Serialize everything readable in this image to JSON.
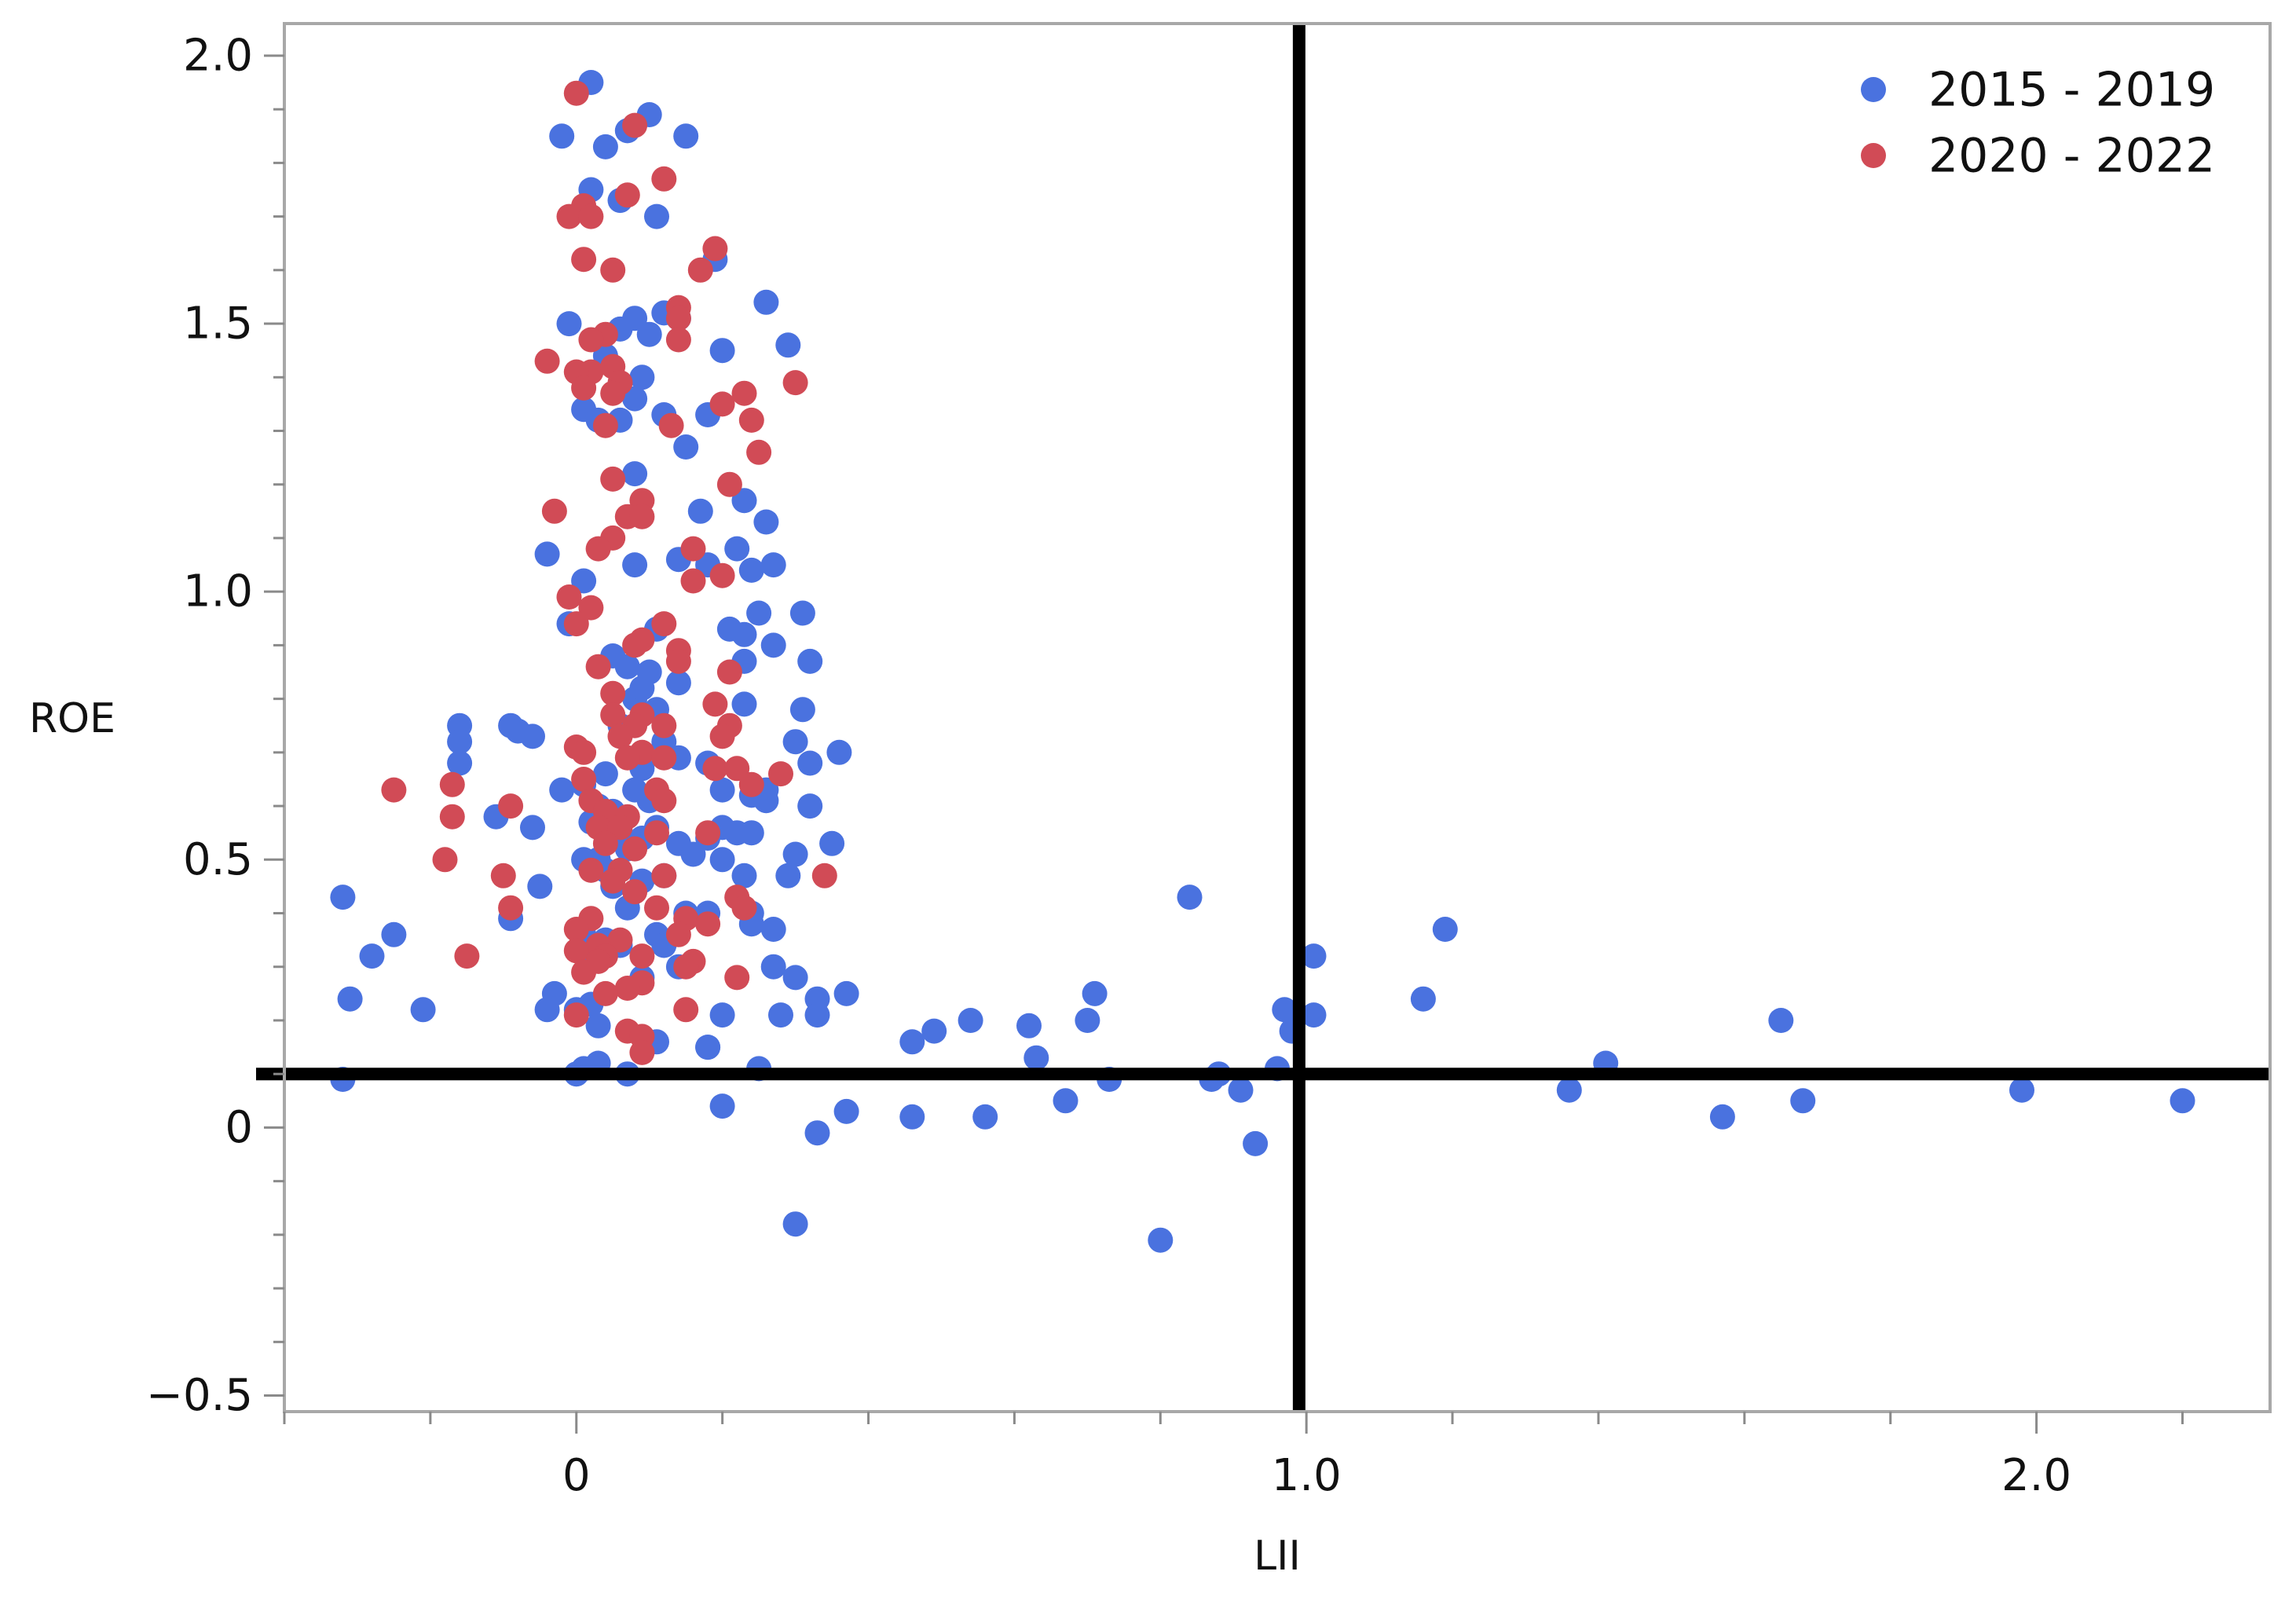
{
  "chart_data": {
    "type": "scatter",
    "title": "",
    "xlabel": "LII",
    "ylabel": "ROE",
    "xlim": [
      -0.4,
      2.32
    ],
    "ylim": [
      -0.53,
      2.06
    ],
    "xticks": [
      {
        "value": 0,
        "label": "0"
      },
      {
        "value": 1.0,
        "label": "1.0"
      },
      {
        "value": 2.0,
        "label": "2.0"
      }
    ],
    "x_minor_ticks": [
      -0.4,
      -0.2,
      0.2,
      0.4,
      0.6,
      0.8,
      1.2,
      1.4,
      1.6,
      1.8,
      2.2
    ],
    "yticks": [
      {
        "value": -0.5,
        "label": "−0.5"
      },
      {
        "value": 0,
        "label": "0"
      },
      {
        "value": 0.5,
        "label": "0.5"
      },
      {
        "value": 1.0,
        "label": "1.0"
      },
      {
        "value": 1.5,
        "label": "1.5"
      },
      {
        "value": 2.0,
        "label": "2.0"
      }
    ],
    "y_minor_step": 0.1,
    "reference_lines": {
      "vertical_x": 0.99,
      "horizontal_y": 0.1
    },
    "grid": false,
    "legend_position": "top-right",
    "series": [
      {
        "name": "2015 - 2019",
        "color": "#4a72df",
        "points": [
          [
            0.02,
            1.95
          ],
          [
            0.1,
            1.89
          ],
          [
            0.15,
            1.85
          ],
          [
            -0.02,
            1.85
          ],
          [
            0.04,
            1.83
          ],
          [
            0.07,
            1.86
          ],
          [
            0.02,
            1.75
          ],
          [
            0.11,
            1.7
          ],
          [
            0.19,
            1.62
          ],
          [
            0.06,
            1.73
          ],
          [
            0.26,
            1.54
          ],
          [
            0.08,
            1.51
          ],
          [
            0.12,
            1.52
          ],
          [
            0.1,
            1.48
          ],
          [
            0.14,
            1.51
          ],
          [
            0.06,
            1.49
          ],
          [
            -0.01,
            1.5
          ],
          [
            0.29,
            1.46
          ],
          [
            0.2,
            1.45
          ],
          [
            0.04,
            1.44
          ],
          [
            0.09,
            1.4
          ],
          [
            0.08,
            1.36
          ],
          [
            0.01,
            1.34
          ],
          [
            0.03,
            1.32
          ],
          [
            0.12,
            1.33
          ],
          [
            0.06,
            1.32
          ],
          [
            0.18,
            1.33
          ],
          [
            0.15,
            1.27
          ],
          [
            0.08,
            1.22
          ],
          [
            0.23,
            1.17
          ],
          [
            0.17,
            1.15
          ],
          [
            0.26,
            1.13
          ],
          [
            0.22,
            1.08
          ],
          [
            0.14,
            1.06
          ],
          [
            0.18,
            1.05
          ],
          [
            0.08,
            1.05
          ],
          [
            -0.04,
            1.07
          ],
          [
            0.24,
            1.04
          ],
          [
            0.27,
            1.05
          ],
          [
            0.01,
            1.02
          ],
          [
            0.25,
            0.96
          ],
          [
            0.31,
            0.96
          ],
          [
            0.21,
            0.93
          ],
          [
            0.23,
            0.92
          ],
          [
            -0.01,
            0.94
          ],
          [
            0.27,
            0.9
          ],
          [
            0.32,
            0.87
          ],
          [
            0.11,
            0.93
          ],
          [
            0.05,
            0.88
          ],
          [
            0.23,
            0.87
          ],
          [
            0.14,
            0.83
          ],
          [
            0.1,
            0.85
          ],
          [
            0.07,
            0.86
          ],
          [
            0.08,
            0.8
          ],
          [
            0.09,
            0.82
          ],
          [
            0.23,
            0.79
          ],
          [
            0.31,
            0.78
          ],
          [
            0.11,
            0.78
          ],
          [
            0.06,
            0.75
          ],
          [
            -0.16,
            0.75
          ],
          [
            -0.09,
            0.75
          ],
          [
            -0.08,
            0.74
          ],
          [
            -0.06,
            0.73
          ],
          [
            -0.16,
            0.72
          ],
          [
            0.12,
            0.72
          ],
          [
            0.3,
            0.72
          ],
          [
            0.36,
            0.7
          ],
          [
            0.14,
            0.69
          ],
          [
            -0.16,
            0.68
          ],
          [
            0.32,
            0.68
          ],
          [
            0.18,
            0.68
          ],
          [
            0.09,
            0.67
          ],
          [
            0.04,
            0.66
          ],
          [
            0.01,
            0.64
          ],
          [
            -0.02,
            0.63
          ],
          [
            0.2,
            0.63
          ],
          [
            0.26,
            0.63
          ],
          [
            0.08,
            0.63
          ],
          [
            0.24,
            0.62
          ],
          [
            0.26,
            0.61
          ],
          [
            0.1,
            0.61
          ],
          [
            0.03,
            0.6
          ],
          [
            0.05,
            0.59
          ],
          [
            0.32,
            0.6
          ],
          [
            -0.11,
            0.58
          ],
          [
            0.02,
            0.57
          ],
          [
            0.2,
            0.56
          ],
          [
            0.11,
            0.56
          ],
          [
            0.22,
            0.55
          ],
          [
            0.24,
            0.55
          ],
          [
            0.06,
            0.55
          ],
          [
            -0.06,
            0.56
          ],
          [
            0.09,
            0.54
          ],
          [
            0.18,
            0.54
          ],
          [
            0.07,
            0.52
          ],
          [
            0.14,
            0.53
          ],
          [
            0.35,
            0.53
          ],
          [
            0.01,
            0.5
          ],
          [
            0.03,
            0.5
          ],
          [
            0.3,
            0.51
          ],
          [
            0.16,
            0.51
          ],
          [
            0.2,
            0.5
          ],
          [
            0.04,
            0.48
          ],
          [
            0.12,
            0.47
          ],
          [
            0.23,
            0.47
          ],
          [
            0.29,
            0.47
          ],
          [
            0.09,
            0.46
          ],
          [
            0.05,
            0.45
          ],
          [
            -0.05,
            0.45
          ],
          [
            0.84,
            0.43
          ],
          [
            -0.32,
            0.43
          ],
          [
            0.07,
            0.41
          ],
          [
            0.15,
            0.4
          ],
          [
            0.18,
            0.4
          ],
          [
            0.24,
            0.4
          ],
          [
            -0.09,
            0.39
          ],
          [
            0.24,
            0.38
          ],
          [
            0.27,
            0.37
          ],
          [
            1.19,
            0.37
          ],
          [
            0.01,
            0.36
          ],
          [
            0.11,
            0.36
          ],
          [
            -0.25,
            0.36
          ],
          [
            0.04,
            0.35
          ],
          [
            0.06,
            0.34
          ],
          [
            0.12,
            0.34
          ],
          [
            1.01,
            0.32
          ],
          [
            -0.28,
            0.32
          ],
          [
            0.02,
            0.31
          ],
          [
            0.27,
            0.3
          ],
          [
            0.14,
            0.3
          ],
          [
            0.09,
            0.28
          ],
          [
            0.3,
            0.28
          ],
          [
            0.37,
            0.25
          ],
          [
            0.71,
            0.25
          ],
          [
            0.33,
            0.24
          ],
          [
            1.16,
            0.24
          ],
          [
            -0.03,
            0.25
          ],
          [
            -0.31,
            0.24
          ],
          [
            0.0,
            0.22
          ],
          [
            -0.04,
            0.22
          ],
          [
            0.02,
            0.23
          ],
          [
            0.97,
            0.22
          ],
          [
            -0.21,
            0.22
          ],
          [
            1.01,
            0.21
          ],
          [
            0.2,
            0.21
          ],
          [
            0.33,
            0.21
          ],
          [
            0.28,
            0.21
          ],
          [
            0.54,
            0.2
          ],
          [
            1.65,
            0.2
          ],
          [
            0.7,
            0.2
          ],
          [
            0.03,
            0.19
          ],
          [
            0.62,
            0.19
          ],
          [
            0.98,
            0.18
          ],
          [
            0.49,
            0.18
          ],
          [
            0.46,
            0.16
          ],
          [
            0.11,
            0.16
          ],
          [
            0.18,
            0.15
          ],
          [
            0.18,
            0.15
          ],
          [
            0.63,
            0.13
          ],
          [
            0.03,
            0.12
          ],
          [
            0.01,
            0.11
          ],
          [
            1.41,
            0.12
          ],
          [
            0.25,
            0.11
          ],
          [
            0.96,
            0.11
          ],
          [
            0.88,
            0.1
          ],
          [
            0.0,
            0.1
          ],
          [
            0.07,
            0.1
          ],
          [
            -0.32,
            0.09
          ],
          [
            0.73,
            0.09
          ],
          [
            0.87,
            0.09
          ],
          [
            0.91,
            0.07
          ],
          [
            1.36,
            0.07
          ],
          [
            1.98,
            0.07
          ],
          [
            0.67,
            0.05
          ],
          [
            1.68,
            0.05
          ],
          [
            2.2,
            0.05
          ],
          [
            0.2,
            0.04
          ],
          [
            0.37,
            0.03
          ],
          [
            0.46,
            0.02
          ],
          [
            0.56,
            0.02
          ],
          [
            1.57,
            0.02
          ],
          [
            0.33,
            -0.01
          ],
          [
            0.93,
            -0.03
          ],
          [
            0.3,
            -0.18
          ],
          [
            0.8,
            -0.21
          ]
        ]
      },
      {
        "name": "2020 - 2022",
        "color": "#d14b56",
        "points": [
          [
            0.0,
            1.93
          ],
          [
            0.08,
            1.87
          ],
          [
            0.12,
            1.77
          ],
          [
            0.07,
            1.74
          ],
          [
            0.01,
            1.72
          ],
          [
            -0.01,
            1.7
          ],
          [
            0.02,
            1.7
          ],
          [
            0.19,
            1.64
          ],
          [
            0.01,
            1.62
          ],
          [
            0.05,
            1.6
          ],
          [
            0.17,
            1.6
          ],
          [
            0.14,
            1.53
          ],
          [
            0.14,
            1.51
          ],
          [
            0.04,
            1.48
          ],
          [
            0.14,
            1.47
          ],
          [
            0.02,
            1.47
          ],
          [
            0.02,
            1.41
          ],
          [
            -0.04,
            1.43
          ],
          [
            0.0,
            1.41
          ],
          [
            0.05,
            1.42
          ],
          [
            0.06,
            1.39
          ],
          [
            0.3,
            1.39
          ],
          [
            0.01,
            1.38
          ],
          [
            0.05,
            1.37
          ],
          [
            0.23,
            1.37
          ],
          [
            0.2,
            1.35
          ],
          [
            0.24,
            1.32
          ],
          [
            0.04,
            1.31
          ],
          [
            0.13,
            1.31
          ],
          [
            0.25,
            1.26
          ],
          [
            0.05,
            1.21
          ],
          [
            0.21,
            1.2
          ],
          [
            0.09,
            1.17
          ],
          [
            -0.03,
            1.15
          ],
          [
            0.07,
            1.14
          ],
          [
            0.09,
            1.14
          ],
          [
            0.05,
            1.1
          ],
          [
            0.03,
            1.08
          ],
          [
            0.16,
            1.08
          ],
          [
            0.16,
            1.02
          ],
          [
            0.2,
            1.03
          ],
          [
            -0.01,
            0.99
          ],
          [
            0.02,
            0.97
          ],
          [
            0.0,
            0.94
          ],
          [
            0.12,
            0.94
          ],
          [
            0.14,
            0.89
          ],
          [
            0.08,
            0.9
          ],
          [
            0.09,
            0.91
          ],
          [
            0.14,
            0.87
          ],
          [
            0.03,
            0.86
          ],
          [
            0.21,
            0.85
          ],
          [
            0.05,
            0.81
          ],
          [
            0.19,
            0.79
          ],
          [
            0.09,
            0.77
          ],
          [
            0.08,
            0.75
          ],
          [
            0.05,
            0.77
          ],
          [
            0.12,
            0.75
          ],
          [
            0.21,
            0.75
          ],
          [
            0.2,
            0.73
          ],
          [
            0.06,
            0.73
          ],
          [
            0.0,
            0.71
          ],
          [
            0.01,
            0.7
          ],
          [
            0.09,
            0.7
          ],
          [
            0.07,
            0.69
          ],
          [
            0.12,
            0.69
          ],
          [
            0.19,
            0.67
          ],
          [
            0.28,
            0.66
          ],
          [
            0.22,
            0.67
          ],
          [
            -0.17,
            0.64
          ],
          [
            0.01,
            0.65
          ],
          [
            0.24,
            0.64
          ],
          [
            0.11,
            0.63
          ],
          [
            -0.25,
            0.63
          ],
          [
            0.12,
            0.61
          ],
          [
            0.02,
            0.61
          ],
          [
            -0.09,
            0.6
          ],
          [
            0.04,
            0.59
          ],
          [
            0.07,
            0.58
          ],
          [
            -0.17,
            0.58
          ],
          [
            0.03,
            0.56
          ],
          [
            0.06,
            0.56
          ],
          [
            0.11,
            0.55
          ],
          [
            0.18,
            0.55
          ],
          [
            0.04,
            0.53
          ],
          [
            0.08,
            0.52
          ],
          [
            -0.18,
            0.5
          ],
          [
            0.06,
            0.48
          ],
          [
            0.02,
            0.48
          ],
          [
            0.12,
            0.47
          ],
          [
            0.34,
            0.47
          ],
          [
            -0.1,
            0.47
          ],
          [
            0.05,
            0.46
          ],
          [
            0.08,
            0.44
          ],
          [
            0.22,
            0.43
          ],
          [
            0.23,
            0.41
          ],
          [
            -0.09,
            0.41
          ],
          [
            0.11,
            0.41
          ],
          [
            0.15,
            0.39
          ],
          [
            0.02,
            0.39
          ],
          [
            0.18,
            0.38
          ],
          [
            0.14,
            0.36
          ],
          [
            0.0,
            0.37
          ],
          [
            0.06,
            0.35
          ],
          [
            0.03,
            0.34
          ],
          [
            0.0,
            0.33
          ],
          [
            0.04,
            0.32
          ],
          [
            0.09,
            0.32
          ],
          [
            -0.15,
            0.32
          ],
          [
            0.16,
            0.31
          ],
          [
            0.15,
            0.3
          ],
          [
            0.03,
            0.31
          ],
          [
            0.01,
            0.29
          ],
          [
            0.22,
            0.28
          ],
          [
            0.09,
            0.27
          ],
          [
            0.07,
            0.26
          ],
          [
            0.04,
            0.25
          ],
          [
            0.15,
            0.22
          ],
          [
            0.0,
            0.21
          ],
          [
            0.07,
            0.18
          ],
          [
            0.09,
            0.17
          ],
          [
            0.09,
            0.14
          ]
        ]
      }
    ]
  }
}
